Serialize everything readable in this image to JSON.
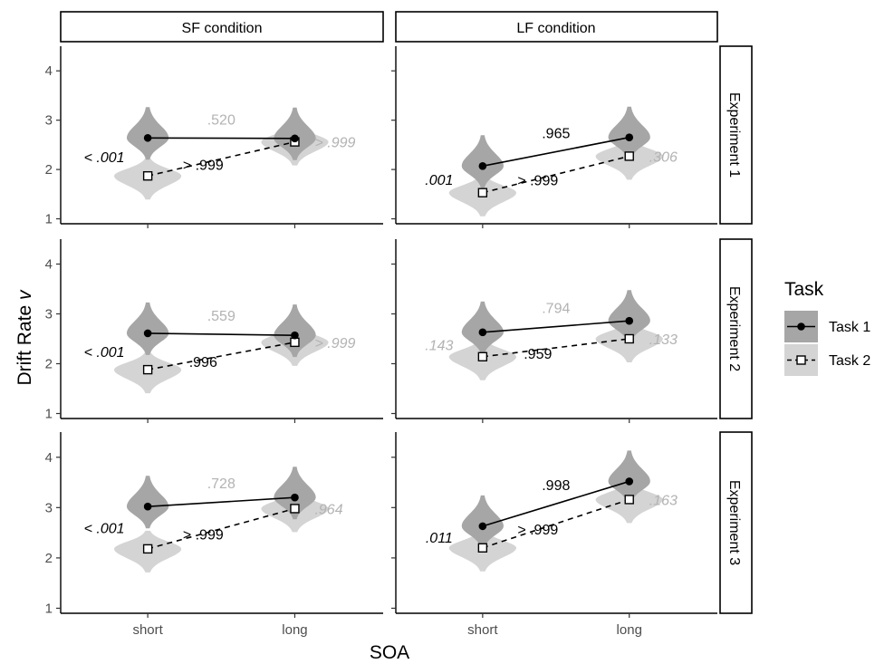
{
  "chart_data": {
    "type": "violin-interaction",
    "ylabel_main": "Drift Rate",
    "ylabel_var": "v",
    "xlabel": "SOA",
    "categories": [
      "short",
      "long"
    ],
    "ylim": [
      0.9,
      4.5
    ],
    "yticks": [
      1,
      2,
      3,
      4
    ],
    "columns": [
      "SF condition",
      "LF condition"
    ],
    "rows": [
      "Experiment 1",
      "Experiment 2",
      "Experiment 3"
    ],
    "legend": {
      "title": "Task",
      "position": "right",
      "entries": [
        {
          "label": "Task 1",
          "marker": "filled-circle",
          "line": "solid"
        },
        {
          "label": "Task 2",
          "marker": "open-square",
          "line": "dashed"
        }
      ]
    },
    "colors": {
      "task1_violin": "#a6a6a6",
      "task2_violin": "#d4d4d4",
      "label_black": "#000000",
      "label_grey": "#b3b3b3",
      "strip_border": "#000000"
    },
    "panels": [
      {
        "row": 0,
        "col": 0,
        "task1": {
          "short": 2.64,
          "long": 2.63
        },
        "task2": {
          "short": 1.87,
          "long": 2.56
        },
        "labels": [
          {
            "text": ".520",
            "color": "grey",
            "anchor": "task1-mid",
            "italic": false
          },
          {
            "text": "< .001",
            "color": "black",
            "anchor": "short-left",
            "italic": true
          },
          {
            "text": "> .999",
            "color": "black",
            "anchor": "task2-mid",
            "italic": false
          },
          {
            "text": "> .999",
            "color": "grey",
            "anchor": "long-right",
            "italic": true
          }
        ]
      },
      {
        "row": 0,
        "col": 1,
        "task1": {
          "short": 2.07,
          "long": 2.65
        },
        "task2": {
          "short": 1.53,
          "long": 2.27
        },
        "labels": [
          {
            "text": ".965",
            "color": "black",
            "anchor": "task1-mid",
            "italic": false
          },
          {
            "text": ".001",
            "color": "black",
            "anchor": "short-left",
            "italic": true
          },
          {
            "text": "> .999",
            "color": "black",
            "anchor": "task2-mid",
            "italic": false
          },
          {
            "text": ".306",
            "color": "grey",
            "anchor": "long-right",
            "italic": true
          }
        ]
      },
      {
        "row": 1,
        "col": 0,
        "task1": {
          "short": 2.61,
          "long": 2.57
        },
        "task2": {
          "short": 1.88,
          "long": 2.43
        },
        "labels": [
          {
            "text": ".559",
            "color": "grey",
            "anchor": "task1-mid",
            "italic": false
          },
          {
            "text": "< .001",
            "color": "black",
            "anchor": "short-left",
            "italic": true
          },
          {
            "text": ".996",
            "color": "black",
            "anchor": "task2-mid",
            "italic": false
          },
          {
            "text": "> .999",
            "color": "grey",
            "anchor": "long-right",
            "italic": true
          }
        ]
      },
      {
        "row": 1,
        "col": 1,
        "task1": {
          "short": 2.63,
          "long": 2.86
        },
        "task2": {
          "short": 2.14,
          "long": 2.5
        },
        "labels": [
          {
            "text": ".794",
            "color": "grey",
            "anchor": "task1-mid",
            "italic": false
          },
          {
            "text": ".143",
            "color": "grey",
            "anchor": "short-left",
            "italic": true
          },
          {
            "text": ".959",
            "color": "black",
            "anchor": "task2-mid",
            "italic": false
          },
          {
            "text": ".133",
            "color": "grey",
            "anchor": "long-right",
            "italic": true
          }
        ]
      },
      {
        "row": 2,
        "col": 0,
        "task1": {
          "short": 3.02,
          "long": 3.2
        },
        "task2": {
          "short": 2.18,
          "long": 2.98
        },
        "labels": [
          {
            "text": ".728",
            "color": "grey",
            "anchor": "task1-mid",
            "italic": false
          },
          {
            "text": "< .001",
            "color": "black",
            "anchor": "short-left",
            "italic": true
          },
          {
            "text": "> .999",
            "color": "black",
            "anchor": "task2-mid",
            "italic": false
          },
          {
            "text": ".964",
            "color": "grey",
            "anchor": "long-right",
            "italic": true
          }
        ]
      },
      {
        "row": 2,
        "col": 1,
        "task1": {
          "short": 2.63,
          "long": 3.52
        },
        "task2": {
          "short": 2.2,
          "long": 3.16
        },
        "labels": [
          {
            "text": ".998",
            "color": "black",
            "anchor": "task1-mid",
            "italic": false
          },
          {
            "text": ".011",
            "color": "black",
            "anchor": "short-left",
            "italic": true
          },
          {
            "text": "> .999",
            "color": "black",
            "anchor": "task2-mid",
            "italic": false
          },
          {
            "text": ".163",
            "color": "grey",
            "anchor": "long-right",
            "italic": true
          }
        ]
      }
    ]
  }
}
